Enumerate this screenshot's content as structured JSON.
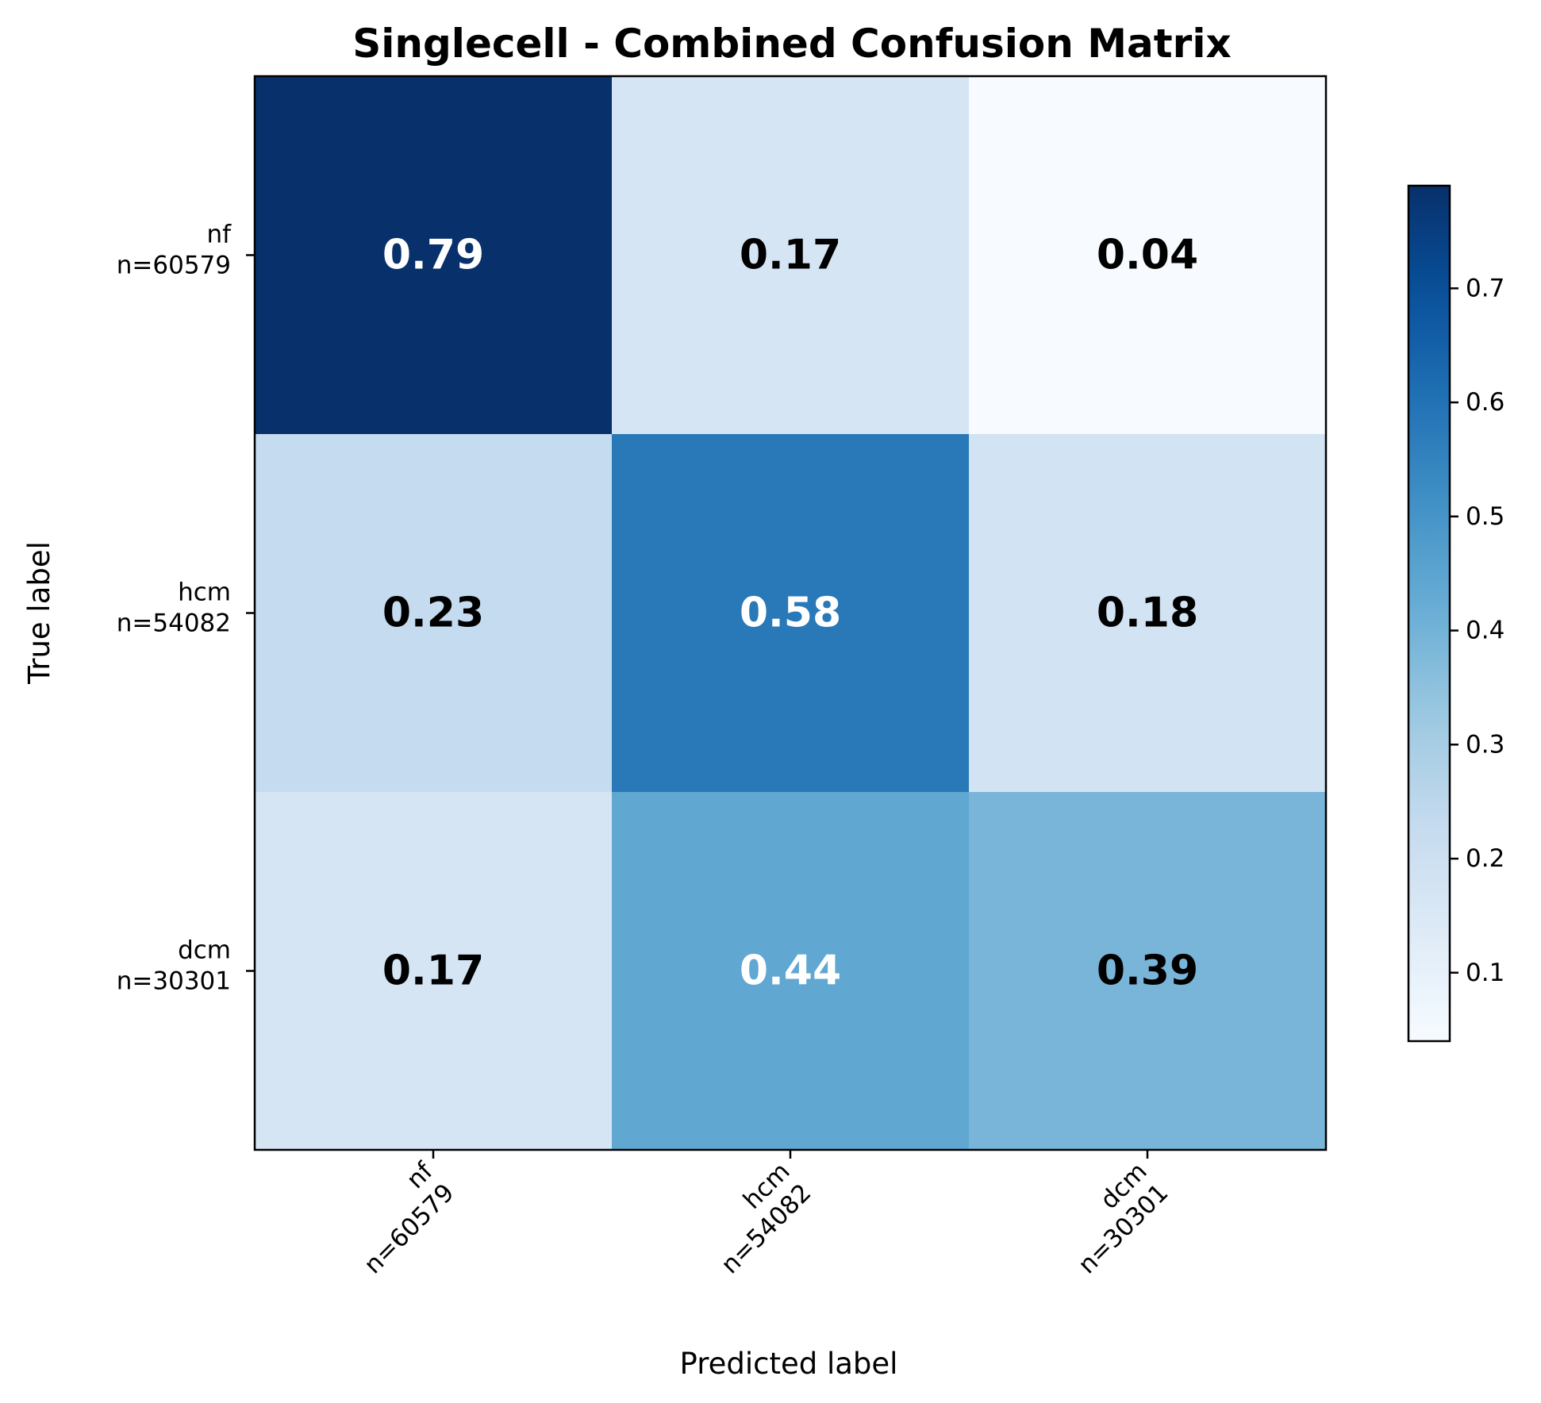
{
  "chart_data": {
    "type": "heatmap",
    "title": "Singlecell - Combined Confusion Matrix",
    "xlabel": "Predicted label",
    "ylabel": "True label",
    "x_categories": [
      {
        "name": "nf",
        "n": "n=60579"
      },
      {
        "name": "hcm",
        "n": "n=54082"
      },
      {
        "name": "dcm",
        "n": "n=30301"
      }
    ],
    "y_categories": [
      {
        "name": "nf",
        "n": "n=60579"
      },
      {
        "name": "hcm",
        "n": "n=54082"
      },
      {
        "name": "dcm",
        "n": "n=30301"
      }
    ],
    "values": [
      [
        0.79,
        0.17,
        0.04
      ],
      [
        0.23,
        0.58,
        0.18
      ],
      [
        0.17,
        0.44,
        0.39
      ]
    ],
    "cell_labels": [
      [
        "0.79",
        "0.17",
        "0.04"
      ],
      [
        "0.23",
        "0.58",
        "0.18"
      ],
      [
        "0.17",
        "0.44",
        "0.39"
      ]
    ],
    "colormap": "Blues",
    "colorbar": {
      "range": [
        0.04,
        0.79
      ],
      "ticks": [
        0.1,
        0.2,
        0.3,
        0.4,
        0.5,
        0.6,
        0.7
      ],
      "tick_labels": [
        "0.1",
        "0.2",
        "0.3",
        "0.4",
        "0.5",
        "0.6",
        "0.7"
      ]
    },
    "x_tick_rotation_deg": 45,
    "grid": false
  }
}
